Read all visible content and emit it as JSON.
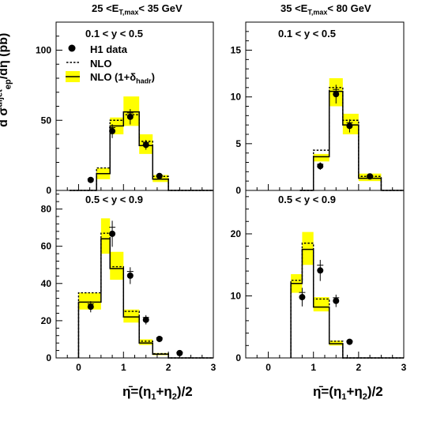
{
  "col_headers": [
    "25 <E_T,max< 35 GeV",
    "35 <E_T,max< 80 GeV"
  ],
  "ylabel": "d σ_ep^dijet/dη̄ (pb)",
  "xlabel": "η̄=(η1+η2)/2",
  "legend": [
    "H1 data",
    "NLO",
    "NLO (1+δ_hadr)"
  ],
  "colors": {
    "band": "#ffff00",
    "line": "#000000",
    "marker": "#000000"
  },
  "chart_data": [
    {
      "type": "histogram",
      "panel": "top-left",
      "column": "25 <E_T,max< 35 GeV",
      "title": "0.1 < y < 0.5",
      "xlim": [
        -0.5,
        3
      ],
      "ylim": [
        0,
        120
      ],
      "yticks": [
        0,
        50,
        100
      ],
      "xticks": [
        0,
        1,
        2,
        3
      ],
      "bins": [
        [
          -0.2,
          0.4
        ],
        [
          0.4,
          0.7
        ],
        [
          0.7,
          1.0
        ],
        [
          1.0,
          1.35
        ],
        [
          1.35,
          1.65
        ],
        [
          1.65,
          2.0
        ],
        [
          2.0,
          2.5
        ],
        [
          2.5,
          3.0
        ]
      ],
      "x": [
        0.27,
        0.75,
        1.15,
        1.5,
        1.8,
        2.25
      ],
      "data": [
        7.5,
        42.3,
        52.5,
        32.5,
        10.3,
        0
      ],
      "data_err": [
        1.5,
        5.0,
        5.5,
        3.5,
        1.0,
        0
      ],
      "nlo": [
        0,
        16,
        50,
        54,
        35,
        10,
        0,
        0
      ],
      "nlo_hadr": [
        0,
        12,
        46,
        56,
        32,
        8,
        0,
        0
      ],
      "band_lo": [
        0,
        8,
        40,
        46,
        26,
        6,
        0,
        0
      ],
      "band_hi": [
        0,
        16,
        52,
        67,
        40,
        11,
        0,
        0
      ]
    },
    {
      "type": "histogram",
      "panel": "top-right",
      "column": "35 <E_T,max< 80 GeV",
      "title": "0.1 < y < 0.5",
      "xlim": [
        -0.5,
        3
      ],
      "ylim": [
        0,
        18
      ],
      "yticks": [
        0,
        5,
        10,
        15
      ],
      "xticks": [
        0,
        1,
        2,
        3
      ],
      "bins": [
        [
          0.7,
          1.0
        ],
        [
          1.0,
          1.35
        ],
        [
          1.35,
          1.65
        ],
        [
          1.65,
          2.0
        ],
        [
          2.0,
          2.5
        ],
        [
          2.5,
          3.0
        ]
      ],
      "x": [
        1.15,
        1.5,
        1.8,
        2.25
      ],
      "data": [
        2.6,
        10.3,
        6.9,
        1.5
      ],
      "data_err": [
        0.4,
        1.0,
        0.7,
        0.2
      ],
      "nlo": [
        0,
        4.3,
        11.0,
        7.5,
        1.5,
        0
      ],
      "nlo_hadr": [
        0,
        3.6,
        10.6,
        7.0,
        1.3,
        0
      ],
      "band_lo": [
        0,
        3.1,
        9.0,
        6.0,
        1.0,
        0
      ],
      "band_hi": [
        0,
        3.9,
        12.0,
        8.2,
        1.8,
        0
      ]
    },
    {
      "type": "histogram",
      "panel": "bottom-left",
      "column": "25 <E_T,max< 35 GeV",
      "title": "0.5 < y < 0.9",
      "xlim": [
        -0.5,
        3
      ],
      "ylim": [
        0,
        90
      ],
      "yticks": [
        0,
        20,
        40,
        60,
        80
      ],
      "xticks": [
        0,
        1,
        2,
        3
      ],
      "bins": [
        [
          0.0,
          0.5
        ],
        [
          0.5,
          0.7
        ],
        [
          0.7,
          1.0
        ],
        [
          1.0,
          1.35
        ],
        [
          1.35,
          1.65
        ],
        [
          1.65,
          2.0
        ],
        [
          2.0,
          2.5
        ],
        [
          2.5,
          3.0
        ]
      ],
      "x": [
        0.27,
        0.75,
        1.15,
        1.5,
        1.8,
        2.25
      ],
      "data": [
        27.5,
        66.7,
        44.2,
        20.5,
        10.2,
        2.6
      ],
      "data_err": [
        3.0,
        7.0,
        4.5,
        2.5,
        1.2,
        0.5
      ],
      "nlo": [
        35,
        67,
        49,
        25,
        9,
        2.3,
        0,
        0
      ],
      "nlo_hadr": [
        30,
        64,
        48,
        22,
        8,
        2,
        0,
        0
      ],
      "band_lo": [
        26,
        56,
        42,
        19,
        7,
        1.5,
        0,
        0
      ],
      "band_hi": [
        35,
        75,
        57,
        26,
        10,
        2.6,
        0,
        0
      ]
    },
    {
      "type": "histogram",
      "panel": "bottom-right",
      "column": "35 <E_T,max< 80 GeV",
      "title": "0.5 < y < 0.9",
      "xlim": [
        -0.5,
        3
      ],
      "ylim": [
        0,
        27
      ],
      "yticks": [
        0,
        10,
        20
      ],
      "xticks": [
        0,
        1,
        2,
        3
      ],
      "bins": [
        [
          0.5,
          0.75
        ],
        [
          0.75,
          1.0
        ],
        [
          1.0,
          1.35
        ],
        [
          1.35,
          1.65
        ],
        [
          1.65,
          2.0
        ],
        [
          2.0,
          2.5
        ],
        [
          2.5,
          3.0
        ]
      ],
      "x": [
        0.75,
        1.15,
        1.5,
        1.8
      ],
      "data": [
        9.8,
        14.1,
        9.2,
        2.6
      ],
      "data_err": [
        1.5,
        1.7,
        1.0,
        0.3
      ],
      "nlo": [
        12.5,
        18.5,
        9.5,
        2.7,
        0,
        0,
        0
      ],
      "nlo_hadr": [
        12,
        17.5,
        8.2,
        2.3,
        0,
        0,
        0
      ],
      "band_lo": [
        10.5,
        15,
        7.5,
        2.0,
        0,
        0,
        0
      ],
      "band_hi": [
        13.5,
        20.3,
        9.8,
        2.8,
        0,
        0,
        0
      ]
    }
  ]
}
